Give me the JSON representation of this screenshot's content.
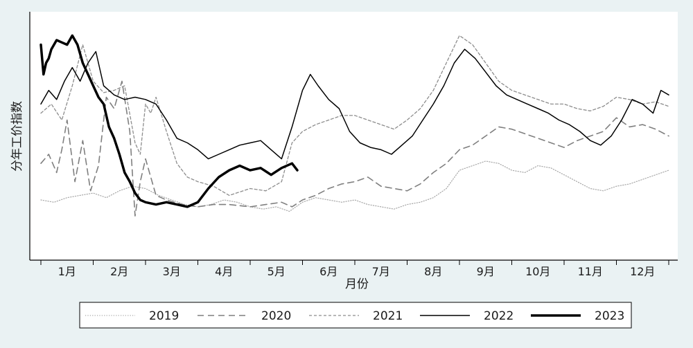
{
  "chart_data": {
    "type": "line",
    "title": "",
    "xlabel": "月份",
    "ylabel": "分年工价指数",
    "x_ticks": [
      "1月",
      "2月",
      "3月",
      "4月",
      "5月",
      "6月",
      "7月",
      "8月",
      "9月",
      "10月",
      "11月",
      "12月"
    ],
    "xlim": [
      0,
      12
    ],
    "ylim": [
      0,
      100
    ],
    "y_ticks": [],
    "grid": false,
    "legend_position": "bottom",
    "colors": {
      "background": "#eaf2f3",
      "plot_background": "#ffffff",
      "axis": "#000000",
      "line": "#000000"
    },
    "series": [
      {
        "name": "2019",
        "style": "dotted",
        "color": "#a6a6a6",
        "width": 1.2,
        "x": [
          0.0,
          0.25,
          0.5,
          0.75,
          1.0,
          1.25,
          1.5,
          1.75,
          2.0,
          2.25,
          2.5,
          2.75,
          3.0,
          3.25,
          3.5,
          3.75,
          4.0,
          4.25,
          4.5,
          4.75,
          5.0,
          5.25,
          5.5,
          5.75,
          6.0,
          6.25,
          6.5,
          6.75,
          7.0,
          7.25,
          7.5,
          7.75,
          8.0,
          8.25,
          8.5,
          8.75,
          9.0,
          9.25,
          9.5,
          9.75,
          10.0,
          10.25,
          10.5,
          10.75,
          11.0,
          11.25,
          11.5,
          11.75,
          12.0
        ],
        "y": [
          20,
          19,
          21,
          22,
          23,
          21,
          24,
          26,
          25,
          22,
          20,
          18,
          17,
          18,
          20,
          19,
          17,
          16,
          17,
          15,
          19,
          21,
          20,
          19,
          20,
          18,
          17,
          16,
          18,
          19,
          21,
          25,
          33,
          35,
          37,
          36,
          33,
          32,
          35,
          34,
          31,
          28,
          25,
          24,
          26,
          27,
          29,
          31,
          33
        ]
      },
      {
        "name": "2020",
        "style": "dashed",
        "color": "#7f7f7f",
        "width": 1.6,
        "x": [
          0.0,
          0.15,
          0.3,
          0.4,
          0.5,
          0.65,
          0.8,
          0.95,
          1.1,
          1.25,
          1.4,
          1.55,
          1.7,
          1.8,
          1.9,
          2.0,
          2.2,
          2.4,
          2.7,
          3.0,
          3.3,
          3.6,
          4.0,
          4.3,
          4.6,
          4.8,
          5.0,
          5.25,
          5.5,
          5.75,
          6.0,
          6.25,
          6.5,
          6.75,
          7.0,
          7.25,
          7.5,
          7.75,
          8.0,
          8.25,
          8.5,
          8.75,
          9.0,
          9.25,
          9.5,
          9.75,
          10.0,
          10.25,
          10.5,
          10.75,
          11.0,
          11.25,
          11.5,
          11.75,
          12.0
        ],
        "y": [
          36,
          40,
          32,
          42,
          55,
          28,
          46,
          24,
          35,
          65,
          60,
          72,
          50,
          13,
          28,
          38,
          22,
          20,
          18,
          17,
          18,
          18,
          17,
          18,
          19,
          17,
          20,
          22,
          25,
          27,
          28,
          30,
          26,
          25,
          24,
          27,
          32,
          36,
          42,
          44,
          48,
          52,
          51,
          49,
          47,
          45,
          43,
          46,
          48,
          50,
          56,
          52,
          53,
          51,
          48
        ]
      },
      {
        "name": "2021",
        "style": "shortdash",
        "color": "#8c8c8c",
        "width": 1.3,
        "x": [
          0.0,
          0.2,
          0.4,
          0.6,
          0.8,
          1.0,
          1.2,
          1.4,
          1.6,
          1.8,
          1.9,
          2.0,
          2.1,
          2.2,
          2.4,
          2.6,
          2.8,
          3.0,
          3.3,
          3.6,
          4.0,
          4.3,
          4.6,
          4.8,
          5.0,
          5.25,
          5.5,
          5.75,
          6.0,
          6.25,
          6.5,
          6.75,
          7.0,
          7.25,
          7.5,
          7.75,
          8.0,
          8.25,
          8.5,
          8.75,
          9.0,
          9.25,
          9.5,
          9.75,
          10.0,
          10.25,
          10.5,
          10.75,
          11.0,
          11.25,
          11.5,
          11.75,
          12.0
        ],
        "y": [
          58,
          62,
          55,
          70,
          88,
          72,
          67,
          68,
          70,
          45,
          40,
          62,
          58,
          65,
          50,
          36,
          30,
          28,
          26,
          22,
          25,
          24,
          28,
          45,
          50,
          53,
          55,
          57,
          57,
          55,
          53,
          51,
          55,
          60,
          68,
          80,
          92,
          88,
          80,
          72,
          68,
          66,
          64,
          62,
          62,
          60,
          59,
          61,
          65,
          64,
          62,
          63,
          61
        ]
      },
      {
        "name": "2022",
        "style": "solid",
        "color": "#000000",
        "width": 1.5,
        "x": [
          0.0,
          0.15,
          0.3,
          0.45,
          0.6,
          0.75,
          0.9,
          1.05,
          1.2,
          1.4,
          1.6,
          1.8,
          2.0,
          2.2,
          2.4,
          2.6,
          2.8,
          3.0,
          3.2,
          3.4,
          3.6,
          3.8,
          4.0,
          4.2,
          4.4,
          4.6,
          4.8,
          5.0,
          5.15,
          5.3,
          5.5,
          5.7,
          5.9,
          6.1,
          6.3,
          6.5,
          6.7,
          6.9,
          7.1,
          7.3,
          7.5,
          7.7,
          7.9,
          8.1,
          8.3,
          8.5,
          8.7,
          8.9,
          9.1,
          9.3,
          9.5,
          9.7,
          9.9,
          10.1,
          10.3,
          10.5,
          10.7,
          10.9,
          11.1,
          11.3,
          11.5,
          11.7,
          11.85,
          12.0
        ],
        "y": [
          62,
          68,
          64,
          72,
          78,
          72,
          80,
          85,
          70,
          66,
          64,
          65,
          64,
          62,
          55,
          47,
          45,
          42,
          38,
          40,
          42,
          44,
          45,
          46,
          42,
          38,
          52,
          68,
          75,
          70,
          64,
          60,
          50,
          45,
          43,
          42,
          40,
          44,
          48,
          55,
          62,
          70,
          80,
          86,
          82,
          76,
          70,
          66,
          64,
          62,
          60,
          58,
          55,
          53,
          50,
          46,
          44,
          48,
          55,
          64,
          62,
          58,
          68,
          66
        ]
      },
      {
        "name": "2023",
        "style": "solid",
        "color": "#000000",
        "width": 3.5,
        "x": [
          0.0,
          0.05,
          0.1,
          0.15,
          0.2,
          0.3,
          0.4,
          0.5,
          0.6,
          0.7,
          0.8,
          0.9,
          1.0,
          1.1,
          1.2,
          1.3,
          1.4,
          1.5,
          1.6,
          1.7,
          1.8,
          1.9,
          2.0,
          2.2,
          2.4,
          2.6,
          2.8,
          3.0,
          3.2,
          3.4,
          3.6,
          3.8,
          4.0,
          4.2,
          4.4,
          4.6,
          4.8,
          4.9
        ],
        "y": [
          88,
          75,
          80,
          82,
          86,
          90,
          89,
          88,
          92,
          88,
          80,
          75,
          70,
          65,
          62,
          52,
          47,
          40,
          32,
          28,
          23,
          20,
          19,
          18,
          19,
          18,
          17,
          19,
          25,
          30,
          33,
          35,
          33,
          34,
          31,
          34,
          36,
          33
        ]
      }
    ]
  }
}
